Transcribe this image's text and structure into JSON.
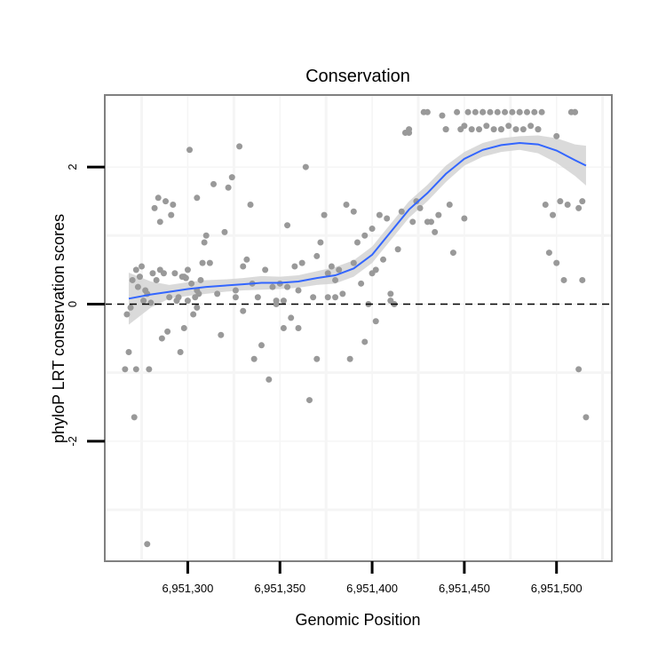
{
  "chart_data": {
    "type": "scatter",
    "title": "Conservation",
    "xlabel": "Genomic Position",
    "ylabel": "phyloP LRT conservation scores",
    "xlim": [
      6951255,
      6951530
    ],
    "ylim": [
      -3.75,
      3.05
    ],
    "x_ticks": [
      6951300,
      6951350,
      6951400,
      6951450,
      6951500
    ],
    "x_tick_labels": [
      "6,951,300",
      "6,951,350",
      "6,951,400",
      "6,951,450",
      "6,951,500"
    ],
    "y_ticks": [
      -2,
      0,
      2
    ],
    "y_tick_labels": [
      "-2",
      "0",
      "2"
    ],
    "reference_line": {
      "y": 0,
      "style": "dashed"
    },
    "colors": {
      "points": "#999999",
      "smooth": "#3366FF",
      "ribbon": "#d3d3d3",
      "panel_border": "#808080",
      "grid": "#f5f5f5",
      "reference": "#000000"
    },
    "smooth_x": [
      6951268,
      6951280,
      6951290,
      6951300,
      6951310,
      6951320,
      6951330,
      6951340,
      6951350,
      6951360,
      6951370,
      6951380,
      6951390,
      6951400,
      6951410,
      6951420,
      6951430,
      6951440,
      6951450,
      6951460,
      6951470,
      6951480,
      6951490,
      6951500,
      6951510,
      6951516
    ],
    "smooth_y": [
      0.08,
      0.14,
      0.18,
      0.22,
      0.25,
      0.27,
      0.29,
      0.31,
      0.31,
      0.33,
      0.38,
      0.42,
      0.52,
      0.72,
      1.05,
      1.38,
      1.62,
      1.9,
      2.12,
      2.25,
      2.32,
      2.35,
      2.33,
      2.24,
      2.1,
      2.02
    ],
    "ribbon_lower": [
      -0.3,
      -0.05,
      0.08,
      0.12,
      0.15,
      0.18,
      0.2,
      0.21,
      0.22,
      0.24,
      0.28,
      0.3,
      0.4,
      0.6,
      0.93,
      1.26,
      1.5,
      1.78,
      2.02,
      2.15,
      2.22,
      2.25,
      2.2,
      2.06,
      1.87,
      1.73
    ],
    "ribbon_upper": [
      0.46,
      0.33,
      0.28,
      0.32,
      0.35,
      0.36,
      0.38,
      0.41,
      0.4,
      0.42,
      0.48,
      0.54,
      0.64,
      0.84,
      1.17,
      1.5,
      1.74,
      2.02,
      2.22,
      2.35,
      2.42,
      2.45,
      2.46,
      2.42,
      2.33,
      2.31
    ],
    "x": [
      6951268,
      6951269,
      6951270,
      6951271,
      6951272,
      6951273,
      6951274,
      6951275,
      6951276,
      6951277,
      6951278,
      6951279,
      6951280,
      6951281,
      6951282,
      6951283,
      6951284,
      6951285,
      6951286,
      6951287,
      6951288,
      6951289,
      6951290,
      6951291,
      6951292,
      6951293,
      6951294,
      6951295,
      6951296,
      6951297,
      6951298,
      6951299,
      6951300,
      6951301,
      6951302,
      6951303,
      6951304,
      6951305,
      6951306,
      6951307,
      6951308,
      6951309,
      6951310,
      6951312,
      6951314,
      6951316,
      6951318,
      6951320,
      6951322,
      6951324,
      6951326,
      6951328,
      6951330,
      6951332,
      6951334,
      6951336,
      6951338,
      6951340,
      6951342,
      6951344,
      6951346,
      6951348,
      6951350,
      6951352,
      6951354,
      6951356,
      6951358,
      6951360,
      6951362,
      6951364,
      6951366,
      6951368,
      6951370,
      6951372,
      6951374,
      6951376,
      6951378,
      6951380,
      6951382,
      6951384,
      6951386,
      6951388,
      6951390,
      6951392,
      6951394,
      6951396,
      6951398,
      6951400,
      6951402,
      6951404,
      6951406,
      6951408,
      6951410,
      6951412,
      6951414,
      6951416,
      6951418,
      6951420,
      6951422,
      6951424,
      6951426,
      6951428,
      6951430,
      6951432,
      6951434,
      6951436,
      6951438,
      6951440,
      6951442,
      6951444,
      6951446,
      6951448,
      6951450,
      6951452,
      6951454,
      6951456,
      6951458,
      6951460,
      6951462,
      6951464,
      6951466,
      6951468,
      6951470,
      6951472,
      6951474,
      6951476,
      6951478,
      6951480,
      6951482,
      6951484,
      6951486,
      6951488,
      6951490,
      6951492,
      6951494,
      6951496,
      6951498,
      6951500,
      6951502,
      6951504,
      6951506,
      6951508,
      6951510,
      6951512,
      6951514,
      6951516,
      6951266,
      6951267,
      6951272,
      6951278,
      6951285,
      6951300,
      6951305,
      6951330,
      6951335,
      6951352,
      6951354,
      6951376,
      6951396,
      6951400,
      6951402,
      6951305,
      6951326,
      6951348,
      6951360,
      6951370,
      6951380,
      6951390,
      6951410,
      6951420,
      6951430,
      6951440,
      6951450,
      6951460,
      6951470,
      6951480,
      6951490,
      6951500,
      6951510,
      6951514,
      6951512,
      6951298
    ],
    "y": [
      -0.7,
      -0.05,
      0.35,
      -1.65,
      0.5,
      0.25,
      0.4,
      0.55,
      0.05,
      0.2,
      0.15,
      -0.95,
      0.02,
      0.45,
      1.4,
      0.35,
      1.55,
      0.5,
      -0.5,
      0.45,
      1.5,
      -0.4,
      0.1,
      1.3,
      1.45,
      0.45,
      0.05,
      0.1,
      -0.7,
      0.4,
      -0.35,
      0.38,
      0.05,
      2.25,
      0.3,
      -0.15,
      0.1,
      1.55,
      0.15,
      0.35,
      0.6,
      0.9,
      1.0,
      0.6,
      1.75,
      0.15,
      -0.45,
      1.05,
      1.7,
      1.85,
      0.1,
      2.3,
      0.55,
      0.65,
      1.45,
      -0.8,
      0.1,
      -0.6,
      0.5,
      -1.1,
      0.25,
      0.0,
      0.3,
      0.05,
      1.15,
      -0.2,
      0.55,
      0.2,
      0.6,
      2.0,
      -1.4,
      0.1,
      0.7,
      0.9,
      1.3,
      0.45,
      0.55,
      0.35,
      0.5,
      0.15,
      1.45,
      -0.8,
      0.6,
      0.9,
      0.3,
      1.0,
      0.0,
      1.1,
      0.5,
      1.3,
      0.65,
      1.25,
      0.15,
      0.0,
      0.8,
      1.35,
      2.5,
      2.5,
      1.2,
      1.5,
      1.4,
      2.8,
      2.8,
      1.2,
      1.05,
      1.3,
      2.75,
      2.55,
      1.45,
      0.75,
      2.8,
      2.55,
      2.6,
      2.8,
      2.55,
      2.8,
      2.55,
      2.8,
      2.6,
      2.8,
      2.55,
      2.8,
      2.55,
      2.8,
      2.6,
      2.8,
      2.55,
      2.8,
      2.55,
      2.8,
      2.6,
      2.8,
      2.55,
      2.8,
      1.45,
      0.75,
      1.3,
      0.6,
      1.5,
      0.35,
      1.45,
      2.8,
      2.8,
      -0.95,
      0.35,
      -1.65,
      -0.95,
      -0.15,
      -0.95,
      -3.5,
      1.2,
      0.5,
      0.2,
      -0.1,
      0.3,
      -0.35,
      0.25,
      0.1,
      -0.55,
      0.45,
      -0.25,
      -0.05,
      0.2,
      0.05,
      -0.35,
      -0.8,
      0.1,
      1.35,
      0.05,
      2.55,
      1.2,
      2.55,
      1.25,
      2.8,
      2.55,
      2.8,
      2.55,
      2.45,
      2.8,
      1.5,
      1.4,
      0.4
    ]
  }
}
